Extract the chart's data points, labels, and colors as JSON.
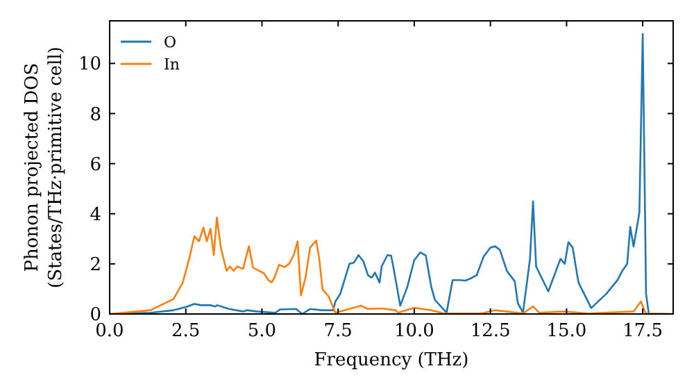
{
  "chart_data": {
    "type": "line",
    "xlabel": "Frequency (THz)",
    "ylabel": "Phonon projected DOS\n(States/THz·primitive cell)",
    "xlim": [
      0,
      18.5
    ],
    "ylim": [
      0,
      11.7
    ],
    "xticks": [
      {
        "value": 0,
        "label": "0.0"
      },
      2.5,
      {
        "value": 5,
        "label": "5.0"
      },
      7.5,
      {
        "value": 10,
        "label": "10.0"
      },
      12.5,
      {
        "value": 15,
        "label": "15.0"
      },
      17.5
    ],
    "yticks": [
      0,
      2,
      4,
      6,
      8,
      10
    ],
    "legend": "top left",
    "grid": false,
    "marker": "none",
    "line_style": "solid",
    "series": [
      {
        "name": "O",
        "color": "#1f77b4",
        "x": [
          0,
          1.34,
          2.1,
          2.55,
          2.78,
          3.0,
          3.31,
          3.46,
          3.53,
          3.92,
          4.38,
          4.52,
          4.82,
          5.44,
          5.59,
          6.12,
          6.32,
          6.58,
          6.96,
          7.34,
          7.41,
          7.57,
          7.72,
          7.87,
          8.02,
          8.17,
          8.33,
          8.48,
          8.6,
          8.71,
          8.86,
          8.93,
          9.12,
          9.24,
          9.31,
          9.54,
          9.77,
          10.0,
          10.2,
          10.38,
          10.56,
          10.68,
          11.06,
          11.26,
          11.52,
          11.67,
          11.82,
          12.05,
          12.28,
          12.5,
          12.66,
          12.81,
          13.04,
          13.3,
          13.4,
          13.57,
          13.8,
          13.9,
          14.0,
          14.4,
          14.8,
          14.94,
          15.06,
          15.2,
          15.39,
          15.81,
          16.3,
          16.67,
          16.83,
          16.99,
          17.09,
          17.2,
          17.39,
          17.5,
          17.61,
          17.7,
          18.5
        ],
        "values": [
          0,
          0.05,
          0.15,
          0.3,
          0.4,
          0.35,
          0.35,
          0.3,
          0.35,
          0.2,
          0.1,
          0.15,
          0.1,
          0.05,
          0.18,
          0.2,
          0,
          0.2,
          0.15,
          0.15,
          0.5,
          0.8,
          1.4,
          2.0,
          2.05,
          2.35,
          2.1,
          1.55,
          1.45,
          1.65,
          1.25,
          1.9,
          2.35,
          2.33,
          1.9,
          0.33,
          1.07,
          2.15,
          2.46,
          2.33,
          1.07,
          0.56,
          0.05,
          1.35,
          1.35,
          1.33,
          1.4,
          1.55,
          2.3,
          2.65,
          2.7,
          2.56,
          1.72,
          1.3,
          0.43,
          0.05,
          2.2,
          4.5,
          1.9,
          0.9,
          2.2,
          2.0,
          2.87,
          2.65,
          1.26,
          0.24,
          0.8,
          1.35,
          1.72,
          2.0,
          3.48,
          2.69,
          4.04,
          11.17,
          0.8,
          0,
          0
        ]
      },
      {
        "name": "In",
        "color": "#ff7f0e",
        "x": [
          0,
          1.34,
          2.1,
          2.4,
          2.63,
          2.78,
          2.93,
          3.08,
          3.19,
          3.31,
          3.42,
          3.52,
          3.65,
          3.84,
          3.95,
          4.07,
          4.19,
          4.38,
          4.57,
          4.71,
          4.91,
          5.06,
          5.21,
          5.32,
          5.41,
          5.56,
          5.74,
          5.89,
          6.05,
          6.17,
          6.28,
          6.43,
          6.58,
          6.78,
          6.88,
          6.99,
          7.19,
          7.41,
          7.72,
          8.25,
          8.48,
          8.93,
          9.39,
          9.47,
          10.0,
          10.53,
          10.98,
          12.2,
          12.66,
          13.57,
          13.9,
          14.1,
          14.9,
          15.7,
          17.2,
          17.44,
          17.6,
          18.5
        ],
        "values": [
          0,
          0.15,
          0.6,
          1.25,
          2.3,
          3.1,
          2.9,
          3.45,
          2.9,
          3.4,
          2.35,
          3.85,
          2.65,
          1.72,
          1.9,
          1.72,
          1.9,
          1.8,
          2.7,
          1.85,
          1.72,
          1.63,
          1.35,
          1.26,
          1.45,
          1.96,
          1.87,
          2.0,
          2.37,
          2.9,
          0.74,
          1.45,
          2.65,
          2.93,
          2.2,
          0.98,
          0.7,
          0.05,
          0.15,
          0.33,
          0.2,
          0.22,
          0.15,
          0.05,
          0.25,
          0.15,
          0.02,
          0.02,
          0.15,
          0.02,
          0.3,
          0.05,
          0.1,
          0.02,
          0.1,
          0.5,
          0.02,
          0
        ]
      }
    ]
  }
}
